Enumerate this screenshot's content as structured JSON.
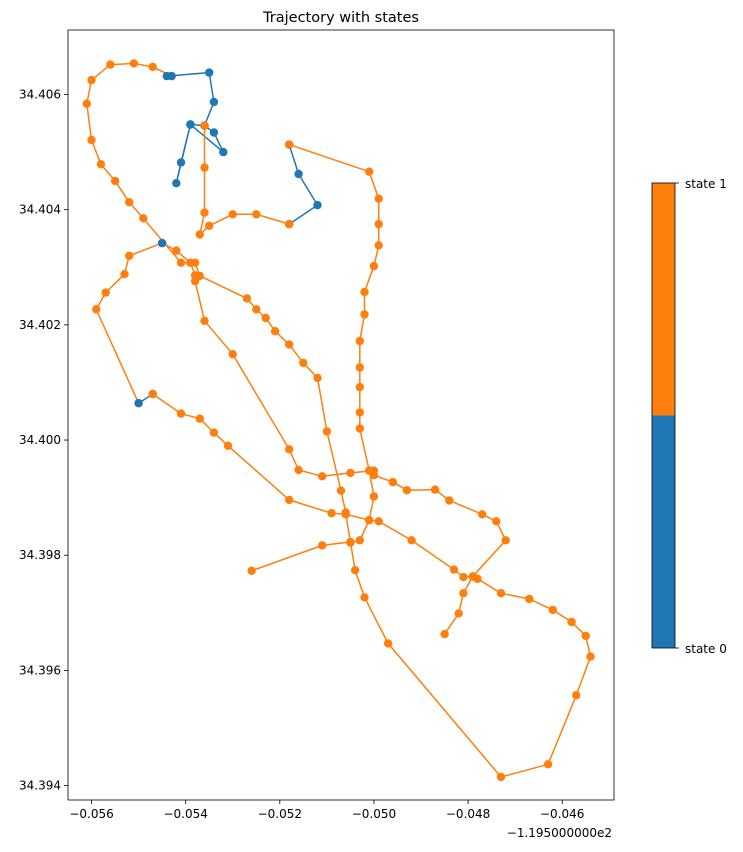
{
  "chart_data": {
    "type": "scatter",
    "title": "Trajectory with states",
    "xlabel": "",
    "ylabel": "",
    "x_offset_text": "−1.195000000e2",
    "xlim": [
      -0.0565,
      -0.0449
    ],
    "ylim": [
      34.39375,
      34.40712
    ],
    "x_ticks": [
      -0.056,
      -0.054,
      -0.052,
      -0.05,
      -0.048,
      -0.046
    ],
    "x_tick_labels": [
      "−0.056",
      "−0.054",
      "−0.052",
      "−0.050",
      "−0.048",
      "−0.046"
    ],
    "y_ticks": [
      34.394,
      34.396,
      34.398,
      34.4,
      34.402,
      34.404,
      34.406
    ],
    "y_tick_labels": [
      "34.394",
      "34.396",
      "34.398",
      "34.400",
      "34.402",
      "34.404",
      "34.406"
    ],
    "grid": false,
    "colorbar": {
      "ticks": [
        "state 1",
        "state 0"
      ],
      "colors": [
        "#ff7f0e",
        "#1f77b4"
      ],
      "state1_fraction": 0.5
    },
    "series": [
      {
        "state": 0,
        "color": "#1f77b4",
        "points": [
          [
            -0.0518,
            34.40513
          ],
          [
            -0.0516,
            34.40462
          ],
          [
            -0.0512,
            34.40408
          ],
          [
            -0.0518,
            34.40375
          ]
        ]
      },
      {
        "state": 1,
        "color": "#ff7f0e",
        "points": [
          [
            -0.0518,
            34.40513
          ],
          [
            -0.0501,
            34.40466
          ],
          [
            -0.0499,
            34.40419
          ],
          [
            -0.0499,
            34.40375
          ],
          [
            -0.0499,
            34.40338
          ],
          [
            -0.05,
            34.40302
          ],
          [
            -0.0502,
            34.40257
          ],
          [
            -0.0502,
            34.40218
          ],
          [
            -0.0503,
            34.40172
          ],
          [
            -0.0503,
            34.40126
          ],
          [
            -0.0503,
            34.40092
          ],
          [
            -0.0503,
            34.40048
          ],
          [
            -0.0503,
            34.4002
          ],
          [
            -0.0501,
            34.39947
          ],
          [
            -0.05,
            34.39902
          ],
          [
            -0.0501,
            34.39861
          ],
          [
            -0.0503,
            34.39826
          ],
          [
            -0.0505,
            34.39822
          ],
          [
            -0.0506,
            34.39874
          ],
          [
            -0.0507,
            34.39912
          ],
          [
            -0.051,
            34.40015
          ],
          [
            -0.0512,
            34.40108
          ],
          [
            -0.0515,
            34.40134
          ],
          [
            -0.0518,
            34.40166
          ],
          [
            -0.0521,
            34.40189
          ],
          [
            -0.0523,
            34.40212
          ],
          [
            -0.0525,
            34.40227
          ],
          [
            -0.0527,
            34.40246
          ],
          [
            -0.0537,
            34.40285
          ],
          [
            -0.0538,
            34.40308
          ],
          [
            -0.0539,
            34.40308
          ],
          [
            -0.0542,
            34.40329
          ],
          [
            -0.0545,
            34.40342
          ],
          [
            -0.0552,
            34.4032
          ],
          [
            -0.0553,
            34.40288
          ],
          [
            -0.0557,
            34.40256
          ],
          [
            -0.0559,
            34.40227
          ],
          [
            -0.055,
            34.40064
          ]
        ]
      },
      {
        "state": 0,
        "color": "#1f77b4",
        "points": [
          [
            -0.055,
            34.40064
          ],
          [
            -0.0547,
            34.4008
          ]
        ]
      },
      {
        "state": 1,
        "color": "#ff7f0e",
        "points": [
          [
            -0.0547,
            34.4008
          ],
          [
            -0.0541,
            34.40046
          ],
          [
            -0.0537,
            34.40037
          ],
          [
            -0.0534,
            34.40013
          ],
          [
            -0.0531,
            34.3999
          ],
          [
            -0.0518,
            34.39896
          ],
          [
            -0.0509,
            34.39873
          ],
          [
            -0.0506,
            34.39871
          ],
          [
            -0.0501,
            34.39861
          ],
          [
            -0.0499,
            34.39859
          ],
          [
            -0.0492,
            34.39826
          ],
          [
            -0.0483,
            34.39775
          ],
          [
            -0.0481,
            34.39762
          ],
          [
            -0.0479,
            34.39763
          ],
          [
            -0.0478,
            34.39759
          ],
          [
            -0.0473,
            34.39734
          ],
          [
            -0.0467,
            34.39724
          ],
          [
            -0.0462,
            34.39705
          ],
          [
            -0.0458,
            34.39684
          ],
          [
            -0.0455,
            34.3966
          ],
          [
            -0.0454,
            34.39624
          ],
          [
            -0.0457,
            34.39557
          ],
          [
            -0.0463,
            34.39437
          ],
          [
            -0.0473,
            34.39415
          ],
          [
            -0.0497,
            34.39647
          ],
          [
            -0.0502,
            34.39727
          ],
          [
            -0.0504,
            34.39774
          ],
          [
            -0.0505,
            34.39823
          ],
          [
            -0.0511,
            34.39817
          ],
          [
            -0.0526,
            34.39773
          ]
        ]
      },
      {
        "state": 1,
        "color": "#ff7f0e",
        "points": [
          [
            -0.0485,
            34.39663
          ],
          [
            -0.0482,
            34.39699
          ],
          [
            -0.0481,
            34.39734
          ],
          [
            -0.0479,
            34.39763
          ],
          [
            -0.0472,
            34.39826
          ],
          [
            -0.0474,
            34.39859
          ],
          [
            -0.0477,
            34.39871
          ],
          [
            -0.0484,
            34.39895
          ],
          [
            -0.0487,
            34.39914
          ],
          [
            -0.0493,
            34.39913
          ],
          [
            -0.0496,
            34.39927
          ],
          [
            -0.05,
            34.39939
          ],
          [
            -0.05,
            34.39947
          ],
          [
            -0.0505,
            34.39943
          ],
          [
            -0.0511,
            34.39937
          ],
          [
            -0.0516,
            34.39948
          ],
          [
            -0.0518,
            34.39984
          ],
          [
            -0.053,
            34.40149
          ],
          [
            -0.0536,
            34.40207
          ],
          [
            -0.0538,
            34.40276
          ],
          [
            -0.0538,
            34.40286
          ],
          [
            -0.0539,
            34.40308
          ],
          [
            -0.0541,
            34.40308
          ],
          [
            -0.0549,
            34.40385
          ],
          [
            -0.0552,
            34.40413
          ],
          [
            -0.0555,
            34.4045
          ],
          [
            -0.0558,
            34.40479
          ],
          [
            -0.056,
            34.40521
          ],
          [
            -0.0561,
            34.40584
          ],
          [
            -0.056,
            34.40625
          ],
          [
            -0.0556,
            34.40652
          ],
          [
            -0.0551,
            34.40654
          ],
          [
            -0.0547,
            34.40648
          ],
          [
            -0.0543,
            34.40632
          ]
        ]
      },
      {
        "state": 0,
        "color": "#1f77b4",
        "points": [
          [
            -0.0543,
            34.40632
          ],
          [
            -0.0544,
            34.40632
          ],
          [
            -0.0535,
            34.40638
          ],
          [
            -0.0534,
            34.40587
          ],
          [
            -0.0536,
            34.40546
          ],
          [
            -0.0534,
            34.40534
          ],
          [
            -0.0532,
            34.405
          ],
          [
            -0.0539,
            34.40548
          ],
          [
            -0.0541,
            34.40482
          ],
          [
            -0.0542,
            34.40446
          ],
          [
            -0.0539,
            34.40548
          ],
          [
            -0.0536,
            34.40546
          ]
        ]
      },
      {
        "state": 1,
        "color": "#ff7f0e",
        "points": [
          [
            -0.0536,
            34.40546
          ],
          [
            -0.0536,
            34.40473
          ],
          [
            -0.0536,
            34.40395
          ],
          [
            -0.0537,
            34.40357
          ],
          [
            -0.0535,
            34.40372
          ],
          [
            -0.053,
            34.40392
          ],
          [
            -0.0525,
            34.40392
          ],
          [
            -0.0518,
            34.40375
          ]
        ]
      },
      {
        "state": 0,
        "color": "#1f77b4",
        "points": [
          [
            -0.0545,
            34.40342
          ]
        ]
      }
    ]
  }
}
